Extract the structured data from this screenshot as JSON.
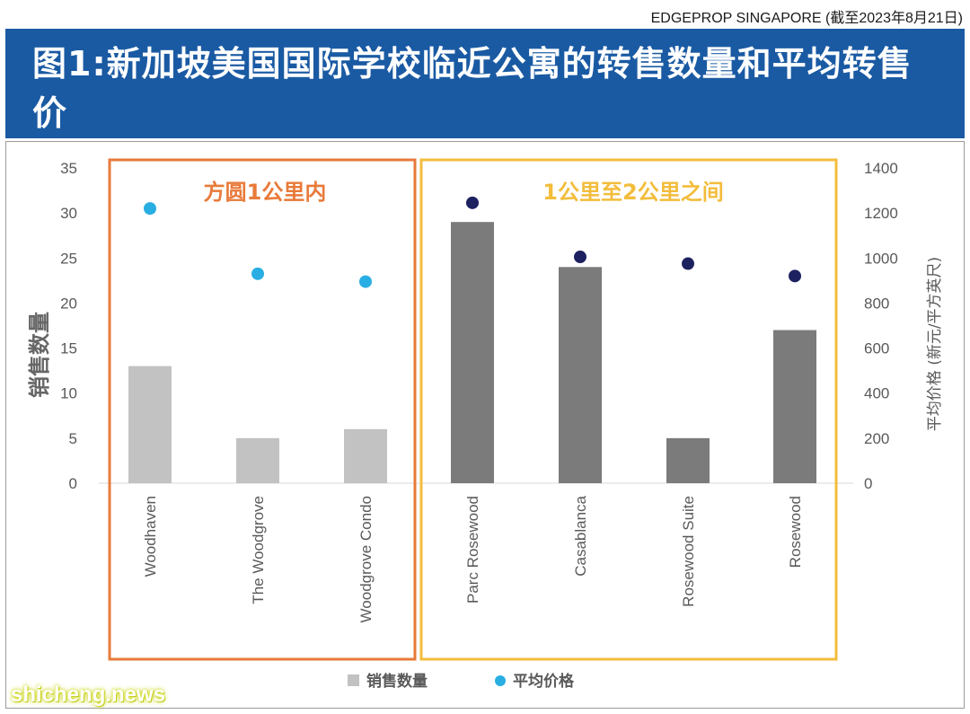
{
  "source": "EDGEPROP SINGAPORE (截至2023年8月21日)",
  "watermark": "shicheng.news",
  "colors": {
    "title_bg": "#1a5aa3",
    "bar_group1": "#c2c2c2",
    "bar_group2": "#7b7b7b",
    "dot_group1": "#29aee3",
    "dot_group2": "#1d2160",
    "box_group1": "#e87a3a",
    "box_group2": "#f3bd3c"
  },
  "chart_data": {
    "type": "bar",
    "title": "图1:新加坡美国国际学校临近公寓的转售数量和平均转售价",
    "categories": [
      "Woodhaven",
      "The Woodgrove",
      "Woodgrove Condo",
      "Parc Rosewood",
      "Casablanca",
      "Rosewood Suite",
      "Rosewood"
    ],
    "groups": [
      {
        "label": "方圆1公里内",
        "categories": [
          "Woodhaven",
          "The Woodgrove",
          "Woodgrove Condo"
        ]
      },
      {
        "label": "1公里至2公里之间",
        "categories": [
          "Parc Rosewood",
          "Casablanca",
          "Rosewood Suite",
          "Rosewood"
        ]
      }
    ],
    "series": [
      {
        "name": "销售数量",
        "type": "bar",
        "axis": "left",
        "values": [
          13,
          5,
          6,
          29,
          24,
          5,
          17
        ]
      },
      {
        "name": "平均价格",
        "type": "scatter",
        "axis": "right",
        "values": [
          1220,
          930,
          895,
          1245,
          1005,
          975,
          920
        ]
      }
    ],
    "ylabel": "销售数量",
    "ylim": [
      0,
      35
    ],
    "yticks": [
      "0",
      "5",
      "10",
      "15",
      "20",
      "25",
      "30",
      "35"
    ],
    "y2label": "平均价格 (新元/平方英尺)",
    "y2lim": [
      0,
      1400
    ],
    "y2ticks": [
      "0",
      "200",
      "400",
      "600",
      "800",
      "1000",
      "1200",
      "1400"
    ],
    "grid": false,
    "legend_position": "bottom-center"
  }
}
